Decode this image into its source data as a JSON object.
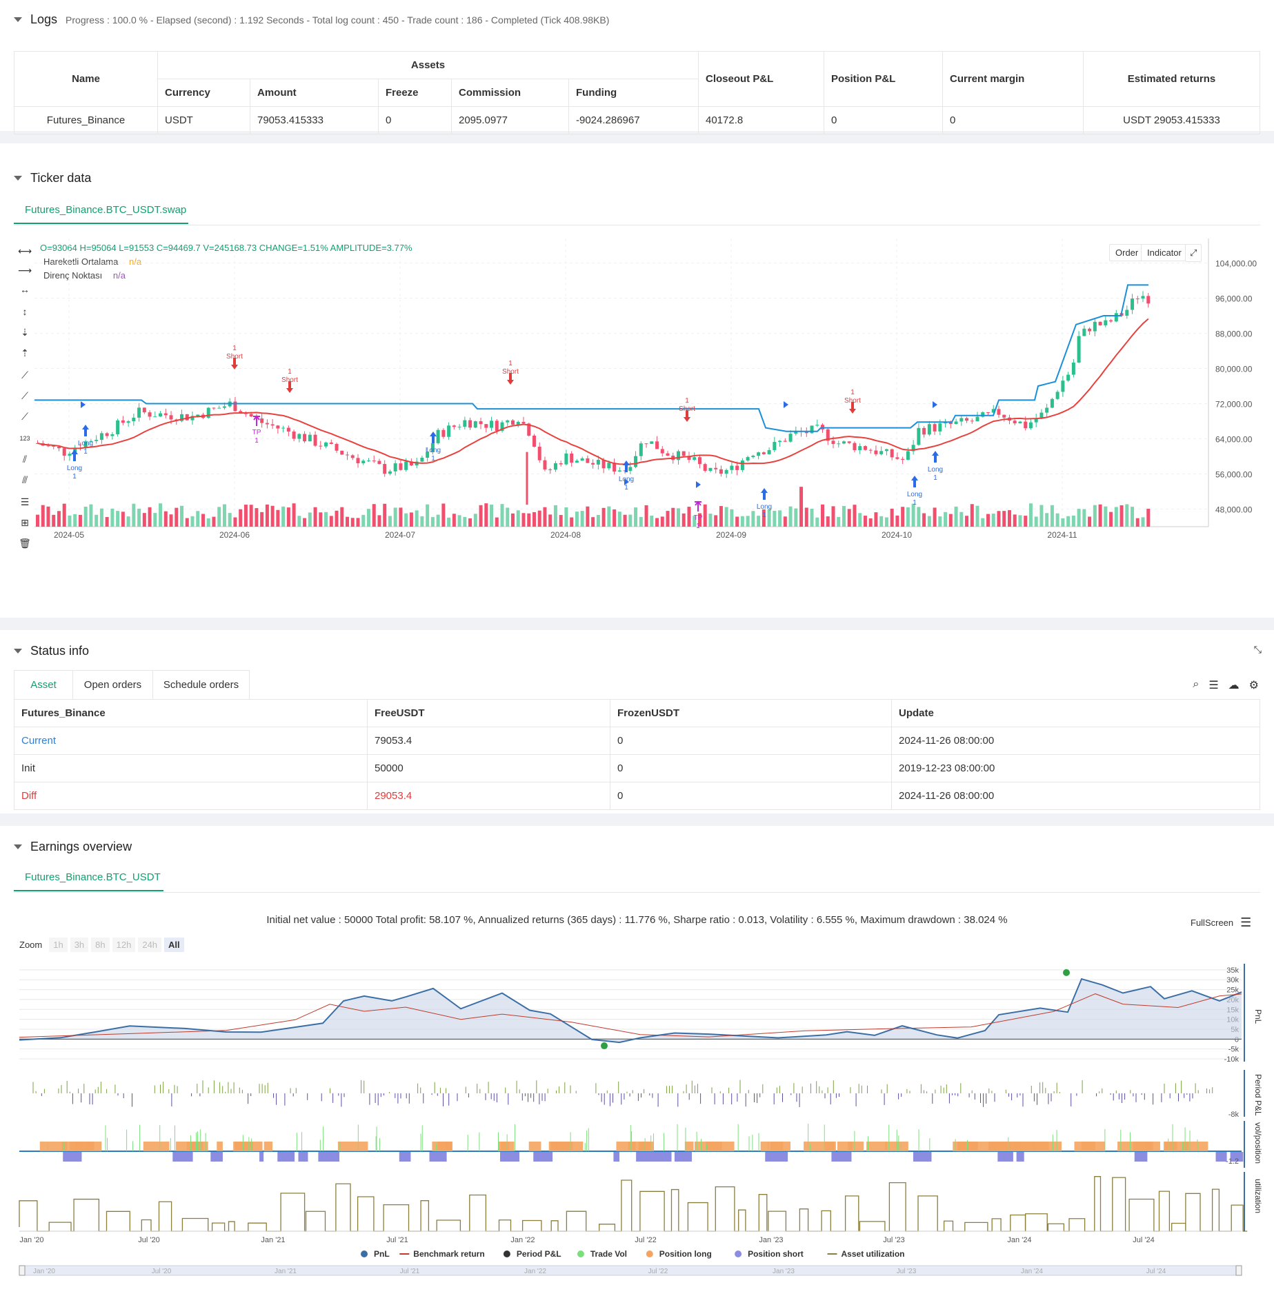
{
  "logs": {
    "title": "Logs",
    "summary": "Progress : 100.0 % - Elapsed (second) : 1.192 Seconds - Total log count : 450 - Trade count : 186 - Completed (Tick 408.98KB)",
    "table": {
      "headers": {
        "name": "Name",
        "assets": "Assets",
        "currency": "Currency",
        "amount": "Amount",
        "freeze": "Freeze",
        "commission": "Commission",
        "funding": "Funding",
        "closeout": "Closeout P&L",
        "position": "Position P&L",
        "margin": "Current margin",
        "returns": "Estimated returns"
      },
      "row": {
        "name": "Futures_Binance",
        "currency": "USDT",
        "amount": "79053.415333",
        "freeze": "0",
        "commission": "2095.0977",
        "funding": "-9024.286967",
        "closeout": "40172.8",
        "position": "0",
        "margin": "0",
        "returns": "USDT 29053.415333"
      }
    }
  },
  "ticker": {
    "title": "Ticker data",
    "tab": "Futures_Binance.BTC_USDT.swap",
    "ohlc": "O=93064 H=95064 L=91553 C=94469.7 V=245168.73 CHANGE=1.51% AMPLITUDE=3.77%",
    "legend": [
      {
        "name": "Hareketli Ortalama",
        "value": "n/a",
        "color": "#f5a623"
      },
      {
        "name": "Direnç Noktası",
        "value": "n/a",
        "color": "#9b59b6"
      }
    ],
    "buttons": {
      "order": "Order",
      "indicator": "Indicator"
    },
    "yticks": [
      "104,000.00",
      "96,000.00",
      "88,000.00",
      "80,000.00",
      "72,000.00",
      "64,000.00",
      "56,000.00",
      "48,000.00"
    ],
    "xticks": [
      "2024-05",
      "2024-06",
      "2024-07",
      "2024-08",
      "2024-09",
      "2024-10",
      "2024-11"
    ],
    "marks": {
      "long": "Long",
      "short": "Short",
      "tp": "TP",
      "one": "1"
    }
  },
  "status": {
    "title": "Status info",
    "tabs": [
      "Asset",
      "Open orders",
      "Schedule orders"
    ],
    "headers": [
      "Futures_Binance",
      "FreeUSDT",
      "FrozenUSDT",
      "Update"
    ],
    "rows": [
      [
        "Current",
        "79053.4",
        "0",
        "2024-11-26 08:00:00"
      ],
      [
        "Init",
        "50000",
        "0",
        "2019-12-23 08:00:00"
      ],
      [
        "Diff",
        "29053.4",
        "0",
        "2024-11-26 08:00:00"
      ]
    ]
  },
  "earnings": {
    "title": "Earnings overview",
    "tab": "Futures_Binance.BTC_USDT",
    "summary": "Initial net value : 50000 Total profit: 58.107 %, Annualized returns (365 days) : 11.776 %, Sharpe ratio : 0.013, Volatility : 6.555 %, Maximum drawdown : 38.024 %",
    "fullscreen": "FullScreen",
    "zoom": {
      "label": "Zoom",
      "options": [
        "1h",
        "3h",
        "8h",
        "12h",
        "24h",
        "All"
      ]
    },
    "pnl_ticks": [
      "35k",
      "30k",
      "25k",
      "20k",
      "15k",
      "10k",
      "5k",
      "0",
      "-5k",
      "-10k"
    ],
    "axis_labels": {
      "pnl": "PnL",
      "period": "Period P&L",
      "vol": "vol/position",
      "util": "utilization"
    },
    "period_tick": "-8k",
    "vol_tick": "-1.2",
    "xticks": [
      "Jan '20",
      "Jul '20",
      "Jan '21",
      "Jul '21",
      "Jan '22",
      "Jul '22",
      "Jan '23",
      "Jul '23",
      "Jan '24",
      "Jul '24"
    ],
    "legend": [
      {
        "name": "PnL",
        "color": "#3a6ea5"
      },
      {
        "name": "Benchmark return",
        "color": "#c0392b"
      },
      {
        "name": "Period P&L",
        "color": "#333333"
      },
      {
        "name": "Trade Vol",
        "color": "#7be07b"
      },
      {
        "name": "Position long",
        "color": "#f4a460"
      },
      {
        "name": "Position short",
        "color": "#8c8ce0"
      },
      {
        "name": "Asset utilization",
        "color": "#8b7d3a"
      }
    ]
  }
}
